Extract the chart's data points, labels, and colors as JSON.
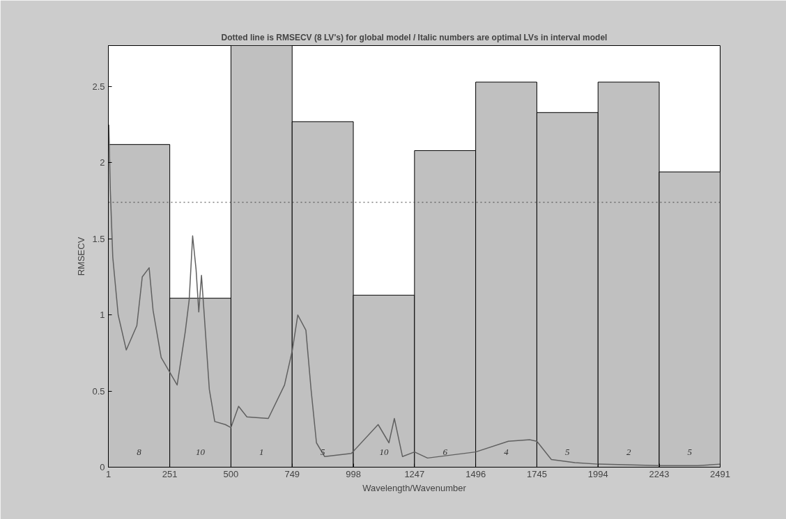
{
  "chart_data": {
    "type": "histogram",
    "title": "Dotted line is RMSECV (8 LV's) for global model / Italic numbers are optimal LVs in interval model",
    "xlabel": "Wavelength/Wavenumber",
    "ylabel": "RMSECV",
    "bins": [
      1,
      251,
      500,
      749,
      998,
      1247,
      1496,
      1745,
      1994,
      2243,
      2491
    ],
    "values": [
      2.12,
      1.11,
      2.77,
      2.27,
      1.13,
      2.08,
      2.53,
      2.33,
      2.53,
      1.94
    ],
    "color": "#c0c0c0",
    "annotations": [
      "8",
      "10",
      "1",
      "5",
      "10",
      "6",
      "4",
      "5",
      "2",
      "5"
    ],
    "series": [
      {
        "type": "line",
        "color": "#606060",
        "x": [
          3,
          9,
          19,
          41,
          74,
          117,
          139,
          167,
          183,
          216,
          281,
          314,
          330,
          344,
          358,
          369,
          380,
          390,
          412,
          434,
          477,
          500,
          531,
          565,
          652,
          718,
          750,
          772,
          805,
          826,
          848,
          881,
          990,
          1099,
          1143,
          1165,
          1198,
          1247,
          1300,
          1496,
          1629,
          1717,
          1745,
          1804,
          1900,
          1994,
          2243,
          2400,
          2491
        ],
        "values": [
          2.25,
          1.82,
          1.38,
          1.0,
          0.77,
          0.93,
          1.25,
          1.31,
          1.03,
          0.72,
          0.54,
          0.89,
          1.1,
          1.52,
          1.3,
          1.02,
          1.26,
          1.03,
          0.51,
          0.3,
          0.28,
          0.26,
          0.4,
          0.33,
          0.32,
          0.54,
          0.77,
          1.0,
          0.9,
          0.51,
          0.16,
          0.07,
          0.09,
          0.28,
          0.16,
          0.32,
          0.07,
          0.1,
          0.06,
          0.1,
          0.17,
          0.18,
          0.17,
          0.05,
          0.03,
          0.02,
          0.01,
          0.01,
          0.02
        ]
      }
    ],
    "ref_lines": [
      {
        "axis": "y",
        "value": 1.74,
        "line_style": "dotted",
        "color": "#404040"
      }
    ],
    "xlim": [
      1,
      2491
    ],
    "ylim": [
      0,
      2.77
    ],
    "xticks": [
      1,
      251,
      500,
      749,
      998,
      1247,
      1496,
      1745,
      1994,
      2243,
      2491
    ],
    "yticks": [
      0,
      0.5,
      1,
      1.5,
      2,
      2.5
    ]
  }
}
